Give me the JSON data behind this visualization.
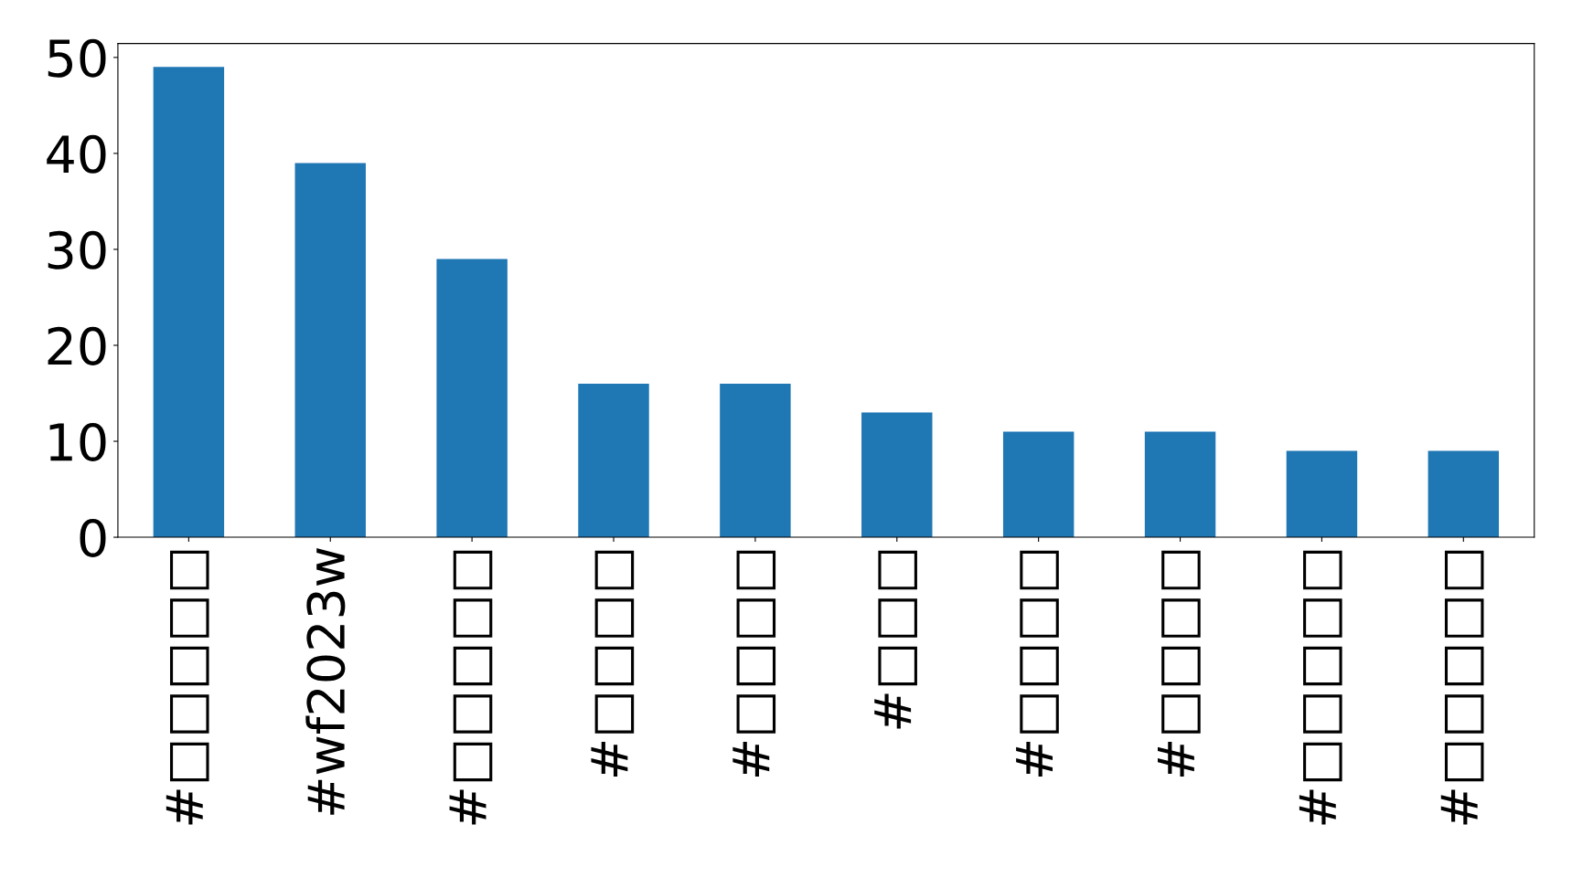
{
  "chart_data": {
    "type": "bar",
    "categories": [
      "#□□□□□",
      "#wf2023w",
      "#□□□□□",
      "#□□□□",
      "#□□□□",
      "#□□□",
      "#□□□□",
      "#□□□□",
      "#□□□□□",
      "#□□□□□"
    ],
    "values": [
      49,
      39,
      29,
      16,
      16,
      13,
      11,
      11,
      9,
      9
    ],
    "color": "#1f77b4",
    "ylim": [
      0,
      51.45
    ],
    "yticks": [
      0,
      10,
      20,
      30,
      40,
      50
    ],
    "grid": false
  }
}
